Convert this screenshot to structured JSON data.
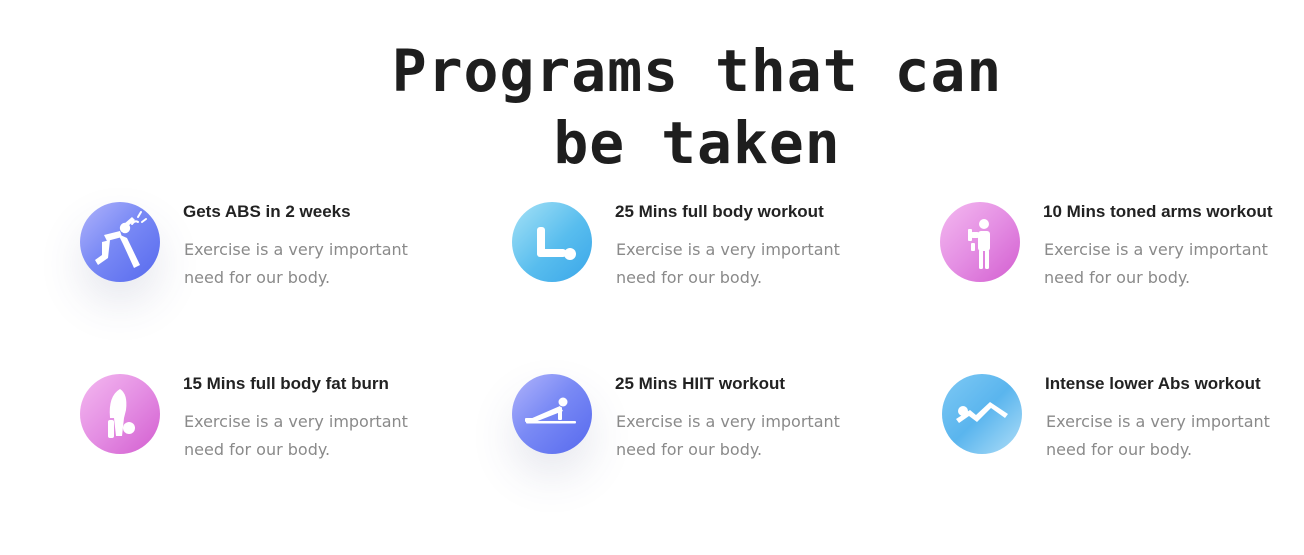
{
  "heading": {
    "line1": "Programs that can",
    "line2": "be taken"
  },
  "programs": [
    {
      "title": "Gets ABS in 2 weeks",
      "description": "Exercise is a very important need for our body.",
      "icon": "sit-up-icon",
      "color": "#6f7ff2"
    },
    {
      "title": "25 Mins full body workout",
      "description": "Exercise is a very important need for our body.",
      "icon": "leg-raise-icon",
      "color": "#52b8ec"
    },
    {
      "title": "10 Mins toned arms workout",
      "description": "Exercise is a very important need for our body.",
      "icon": "dumbbell-curl-icon",
      "color": "#de7fde"
    },
    {
      "title": "15 Mins full body fat burn",
      "description": "Exercise is a very important need for our body.",
      "icon": "headstand-icon",
      "color": "#e17fde"
    },
    {
      "title": "25 Mins HIIT workout",
      "description": "Exercise is a very important need for our body.",
      "icon": "push-up-icon",
      "color": "#6479f0"
    },
    {
      "title": "Intense lower Abs workout",
      "description": "Exercise is a very important need for our body.",
      "icon": "downward-dog-icon",
      "color": "#62baf0"
    }
  ]
}
